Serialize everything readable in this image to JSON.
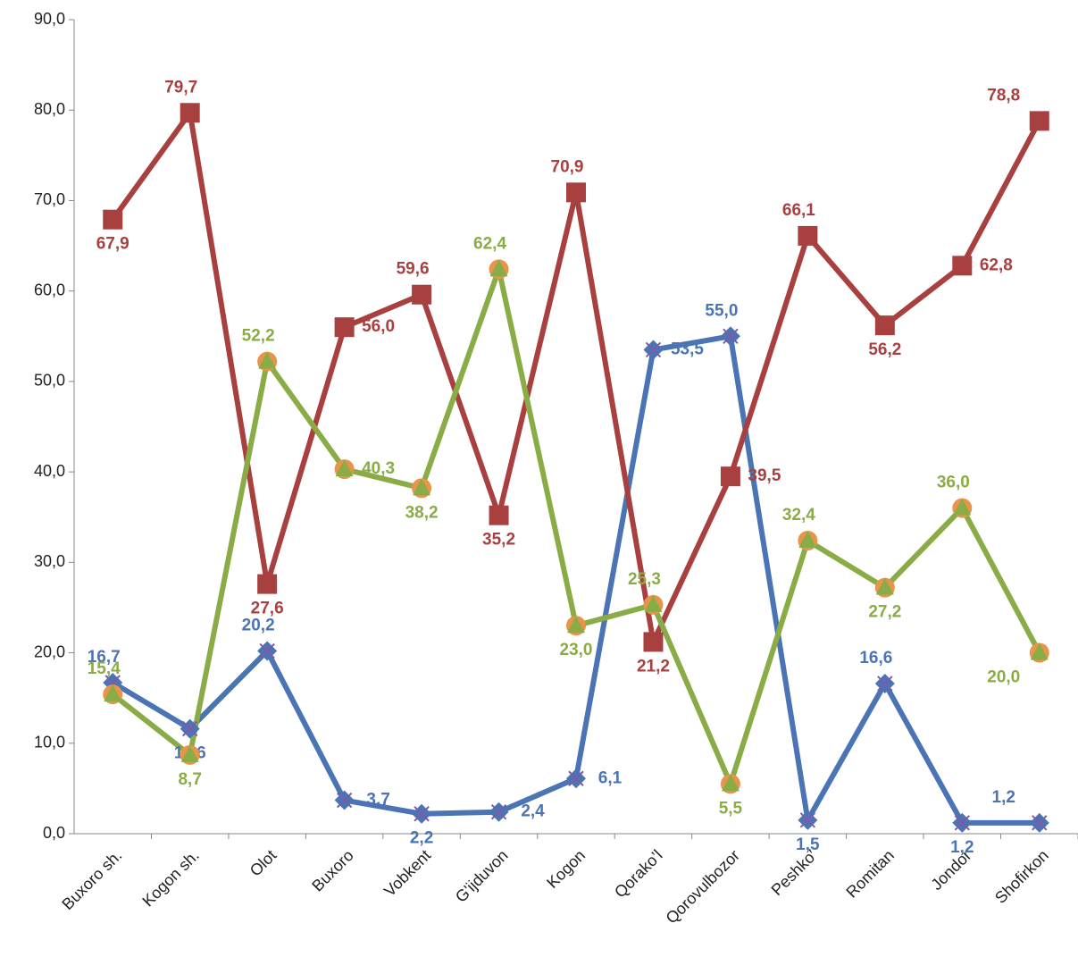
{
  "chart_data": {
    "type": "line",
    "categories": [
      "Buxoro sh.",
      "Kogon sh.",
      "Olot",
      "Buxoro",
      "Vobkent",
      "G'ijduvon",
      "Kogon",
      "Qorako’l",
      "Qorovulbozor",
      "Peshko′",
      "Romitan",
      "Jondor",
      "Shofirkon"
    ],
    "series": [
      {
        "color": "#4a74b4",
        "marker": "diamond",
        "marker_color": "#7c5ca8",
        "values": [
          16.7,
          11.6,
          20.2,
          3.7,
          2.2,
          2.4,
          6.1,
          53.5,
          55.0,
          1.5,
          16.6,
          1.2,
          1.2
        ],
        "value_labels": [
          "16,7",
          "11,6",
          "20,2",
          "3,7",
          "2,2",
          "2,4",
          "6,1",
          "53,5",
          "55,0",
          "1,5",
          "16,6",
          "1,2",
          "1,2"
        ]
      },
      {
        "color": "#a84040",
        "marker": "square",
        "marker_color": "#a84040",
        "values": [
          67.9,
          79.7,
          27.6,
          56.0,
          59.6,
          35.2,
          70.9,
          21.2,
          39.5,
          66.1,
          56.2,
          62.8,
          78.8
        ],
        "value_labels": [
          "67,9",
          "79,7",
          "27,6",
          "56,0",
          "59,6",
          "35,2",
          "70,9",
          "21,2",
          "39,5",
          "66,1",
          "56,2",
          "62,8",
          "78,8"
        ]
      },
      {
        "color": "#8aac46",
        "marker": "triangle",
        "marker_color": "#e8944a",
        "values": [
          15.4,
          8.7,
          52.2,
          40.3,
          38.2,
          62.4,
          23.0,
          25.3,
          5.5,
          32.4,
          27.2,
          36.0,
          20.0
        ],
        "value_labels": [
          "15,4",
          "8,7",
          "52,2",
          "40,3",
          "38,2",
          "62,4",
          "23,0",
          "25,3",
          "5,5",
          "32,4",
          "27,2",
          "36,0",
          "20,0"
        ]
      }
    ],
    "ylim": [
      0,
      90
    ],
    "yticks": [
      {
        "value": 0,
        "label": "0,0"
      },
      {
        "value": 10,
        "label": "10,0"
      },
      {
        "value": 20,
        "label": "20,0"
      },
      {
        "value": 30,
        "label": "30,0"
      },
      {
        "value": 40,
        "label": "40,0"
      },
      {
        "value": 50,
        "label": "50,0"
      },
      {
        "value": 60,
        "label": "60,0"
      },
      {
        "value": 70,
        "label": "70,0"
      },
      {
        "value": 80,
        "label": "80,0"
      },
      {
        "value": 90,
        "label": "90,0"
      }
    ]
  }
}
